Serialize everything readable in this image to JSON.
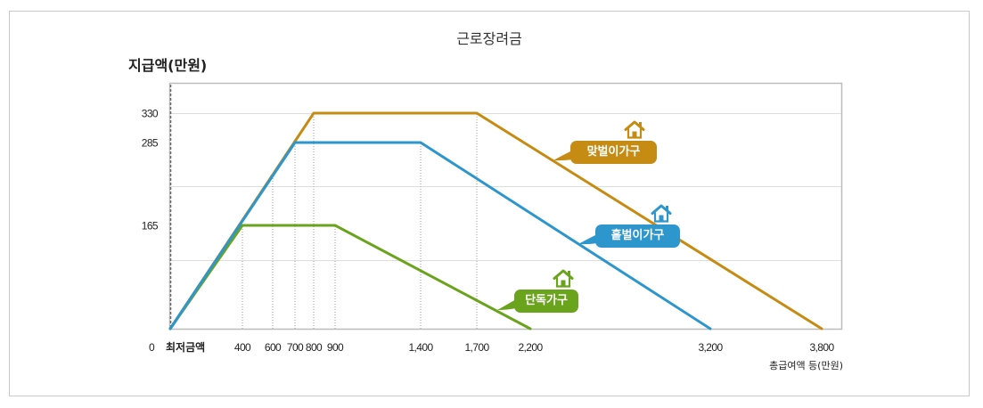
{
  "chart_data": {
    "type": "line",
    "title": "근로장려금",
    "ylabel": "지급액(만원)",
    "xlabel": "총급여액 등(만원)",
    "origin_label": "0",
    "x_ticks": [
      400,
      600,
      700,
      800,
      900,
      1400,
      1700,
      2200,
      3200,
      3800
    ],
    "x_tick_labels": [
      "400",
      "600",
      "700",
      "800",
      "900",
      "1,400",
      "1,700",
      "2,200",
      "3,200",
      "3,800"
    ],
    "y_ticks": [
      165,
      285,
      330
    ],
    "y_tick_labels": [
      "165",
      "285",
      "330"
    ],
    "xlim": [
      0,
      3800
    ],
    "ylim": [
      0,
      330
    ],
    "grid": true,
    "legend": "inline",
    "annotations": [
      {
        "text": "최저금액",
        "x": 0
      }
    ],
    "series": [
      {
        "name": "단독가구",
        "color": "#6aa31c",
        "icon": "house-icon",
        "x": [
          0,
          400,
          900,
          2200
        ],
        "y": [
          0,
          165,
          165,
          0
        ]
      },
      {
        "name": "홑벌이가구",
        "color": "#2d96cd",
        "icon": "house-icon",
        "x": [
          0,
          700,
          1400,
          3200
        ],
        "y": [
          0,
          285,
          285,
          0
        ]
      },
      {
        "name": "맞벌이가구",
        "color": "#c68b12",
        "icon": "house-icon",
        "x": [
          0,
          800,
          1700,
          3800
        ],
        "y": [
          0,
          330,
          330,
          0
        ]
      }
    ]
  }
}
